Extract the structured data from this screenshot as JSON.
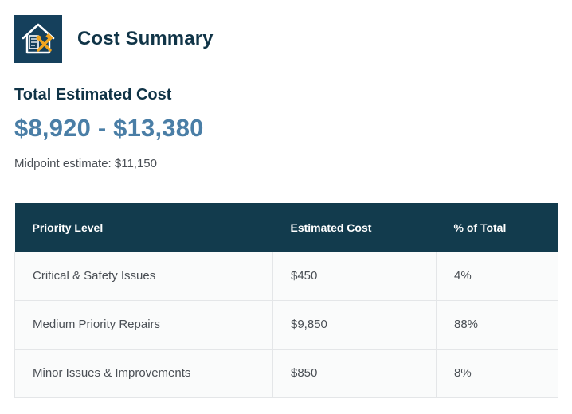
{
  "header": {
    "title": "Cost Summary",
    "icon": "house-tools-icon",
    "icon_colors": {
      "background": "#15405c",
      "house": "#ffffff",
      "tools": "#f2a51f"
    }
  },
  "summary": {
    "heading": "Total Estimated Cost",
    "range": "$8,920 - $13,380",
    "midpoint": "Midpoint estimate: $11,150"
  },
  "table": {
    "headers": [
      "Priority Level",
      "Estimated Cost",
      "% of Total"
    ],
    "rows": [
      [
        "Critical & Safety Issues",
        "$450",
        "4%"
      ],
      [
        "Medium Priority Repairs",
        "$9,850",
        "88%"
      ],
      [
        "Minor Issues & Improvements",
        "$850",
        "8%"
      ]
    ]
  },
  "colors": {
    "header_bg": "#123b4d",
    "accent": "#4a7ea6",
    "title": "#103447"
  }
}
